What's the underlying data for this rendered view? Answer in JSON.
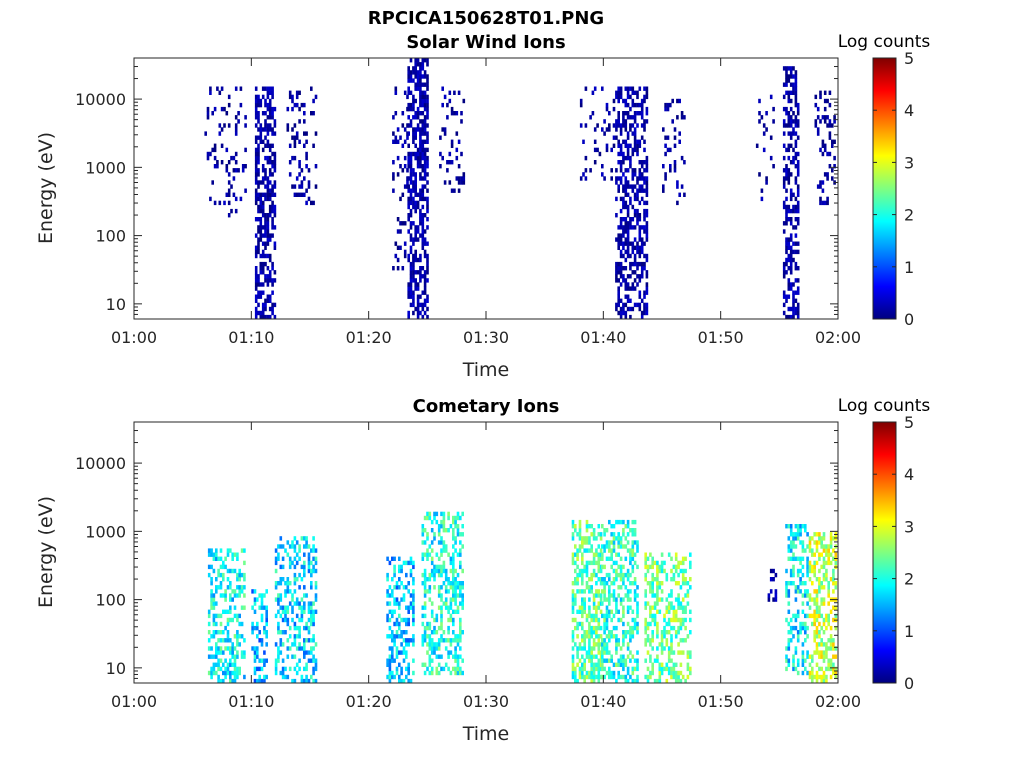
{
  "figure_title": "RPCICA150628T01.PNG",
  "colors": {
    "axis": "#262626",
    "background": "#ffffff"
  },
  "chart_data": [
    {
      "type": "heatmap",
      "title": "Solar Wind Ions",
      "xlabel": "Time",
      "ylabel": "Energy (eV)",
      "x_ticks": [
        "01:00",
        "01:10",
        "01:20",
        "01:30",
        "01:40",
        "01:50",
        "02:00"
      ],
      "xlim": [
        "01:00",
        "02:00"
      ],
      "y_ticks": [
        "10",
        "100",
        "1000",
        "10000"
      ],
      "ylim": [
        6,
        40000
      ],
      "yscale": "log",
      "colorbar": {
        "label": "Log counts",
        "ticks": [
          "0",
          "1",
          "2",
          "3",
          "4",
          "5"
        ],
        "range": [
          0,
          5
        ],
        "colormap": "jet"
      },
      "bursts": [
        {
          "t_start": 6.0,
          "t_end": 9.5,
          "e_min": 200,
          "e_max": 15000,
          "level": 0.15,
          "density": 0.14
        },
        {
          "t_start": 10.3,
          "t_end": 12.0,
          "e_min": 6,
          "e_max": 15000,
          "level": 0.2,
          "density": 0.55
        },
        {
          "t_start": 13.0,
          "t_end": 15.5,
          "e_min": 300,
          "e_max": 15000,
          "level": 0.15,
          "density": 0.18
        },
        {
          "t_start": 22.0,
          "t_end": 23.3,
          "e_min": 30,
          "e_max": 15000,
          "level": 0.15,
          "density": 0.15
        },
        {
          "t_start": 23.3,
          "t_end": 25.0,
          "e_min": 6,
          "e_max": 40000,
          "level": 0.2,
          "density": 0.6
        },
        {
          "t_start": 26.0,
          "t_end": 28.0,
          "e_min": 400,
          "e_max": 15000,
          "level": 0.15,
          "density": 0.18
        },
        {
          "t_start": 38.0,
          "t_end": 41.0,
          "e_min": 600,
          "e_max": 15000,
          "level": 0.15,
          "density": 0.12
        },
        {
          "t_start": 41.0,
          "t_end": 43.7,
          "e_min": 6,
          "e_max": 15000,
          "level": 0.2,
          "density": 0.5
        },
        {
          "t_start": 45.0,
          "t_end": 47.0,
          "e_min": 300,
          "e_max": 10000,
          "level": 0.15,
          "density": 0.16
        },
        {
          "t_start": 53.0,
          "t_end": 55.0,
          "e_min": 300,
          "e_max": 15000,
          "level": 0.15,
          "density": 0.06
        },
        {
          "t_start": 55.3,
          "t_end": 56.7,
          "e_min": 6,
          "e_max": 30000,
          "level": 0.2,
          "density": 0.5
        },
        {
          "t_start": 58.0,
          "t_end": 59.8,
          "e_min": 300,
          "e_max": 15000,
          "level": 0.15,
          "density": 0.2
        }
      ]
    },
    {
      "type": "heatmap",
      "title": "Cometary Ions",
      "xlabel": "Time",
      "ylabel": "Energy (eV)",
      "x_ticks": [
        "01:00",
        "01:10",
        "01:20",
        "01:30",
        "01:40",
        "01:50",
        "02:00"
      ],
      "xlim": [
        "01:00",
        "02:00"
      ],
      "y_ticks": [
        "10",
        "100",
        "1000",
        "10000"
      ],
      "ylim": [
        6,
        40000
      ],
      "yscale": "log",
      "colorbar": {
        "label": "Log counts",
        "ticks": [
          "0",
          "1",
          "2",
          "3",
          "4",
          "5"
        ],
        "range": [
          0,
          5
        ],
        "colormap": "jet"
      },
      "bursts": [
        {
          "t_start": 6.3,
          "t_end": 9.3,
          "e_min": 6,
          "e_max": 600,
          "level": 1.9,
          "density": 0.42
        },
        {
          "t_start": 10.0,
          "t_end": 11.3,
          "e_min": 6,
          "e_max": 150,
          "level": 1.5,
          "density": 0.45
        },
        {
          "t_start": 12.0,
          "t_end": 15.5,
          "e_min": 6,
          "e_max": 900,
          "level": 1.7,
          "density": 0.4
        },
        {
          "t_start": 21.5,
          "t_end": 23.8,
          "e_min": 6,
          "e_max": 400,
          "level": 1.6,
          "density": 0.45
        },
        {
          "t_start": 24.5,
          "t_end": 28.0,
          "e_min": 8,
          "e_max": 2000,
          "level": 2.0,
          "density": 0.45
        },
        {
          "t_start": 37.3,
          "t_end": 39.8,
          "e_min": 6,
          "e_max": 1500,
          "level": 2.3,
          "density": 0.55
        },
        {
          "t_start": 39.8,
          "t_end": 43.0,
          "e_min": 6,
          "e_max": 1500,
          "level": 2.1,
          "density": 0.48
        },
        {
          "t_start": 43.5,
          "t_end": 47.5,
          "e_min": 6,
          "e_max": 500,
          "level": 2.4,
          "density": 0.45
        },
        {
          "t_start": 54.0,
          "t_end": 54.8,
          "e_min": 80,
          "e_max": 300,
          "level": 0.2,
          "density": 0.3
        },
        {
          "t_start": 55.5,
          "t_end": 57.5,
          "e_min": 8,
          "e_max": 1200,
          "level": 1.8,
          "density": 0.4
        },
        {
          "t_start": 57.5,
          "t_end": 59.8,
          "e_min": 6,
          "e_max": 1000,
          "level": 2.8,
          "density": 0.5
        }
      ],
      "annotations": []
    }
  ]
}
